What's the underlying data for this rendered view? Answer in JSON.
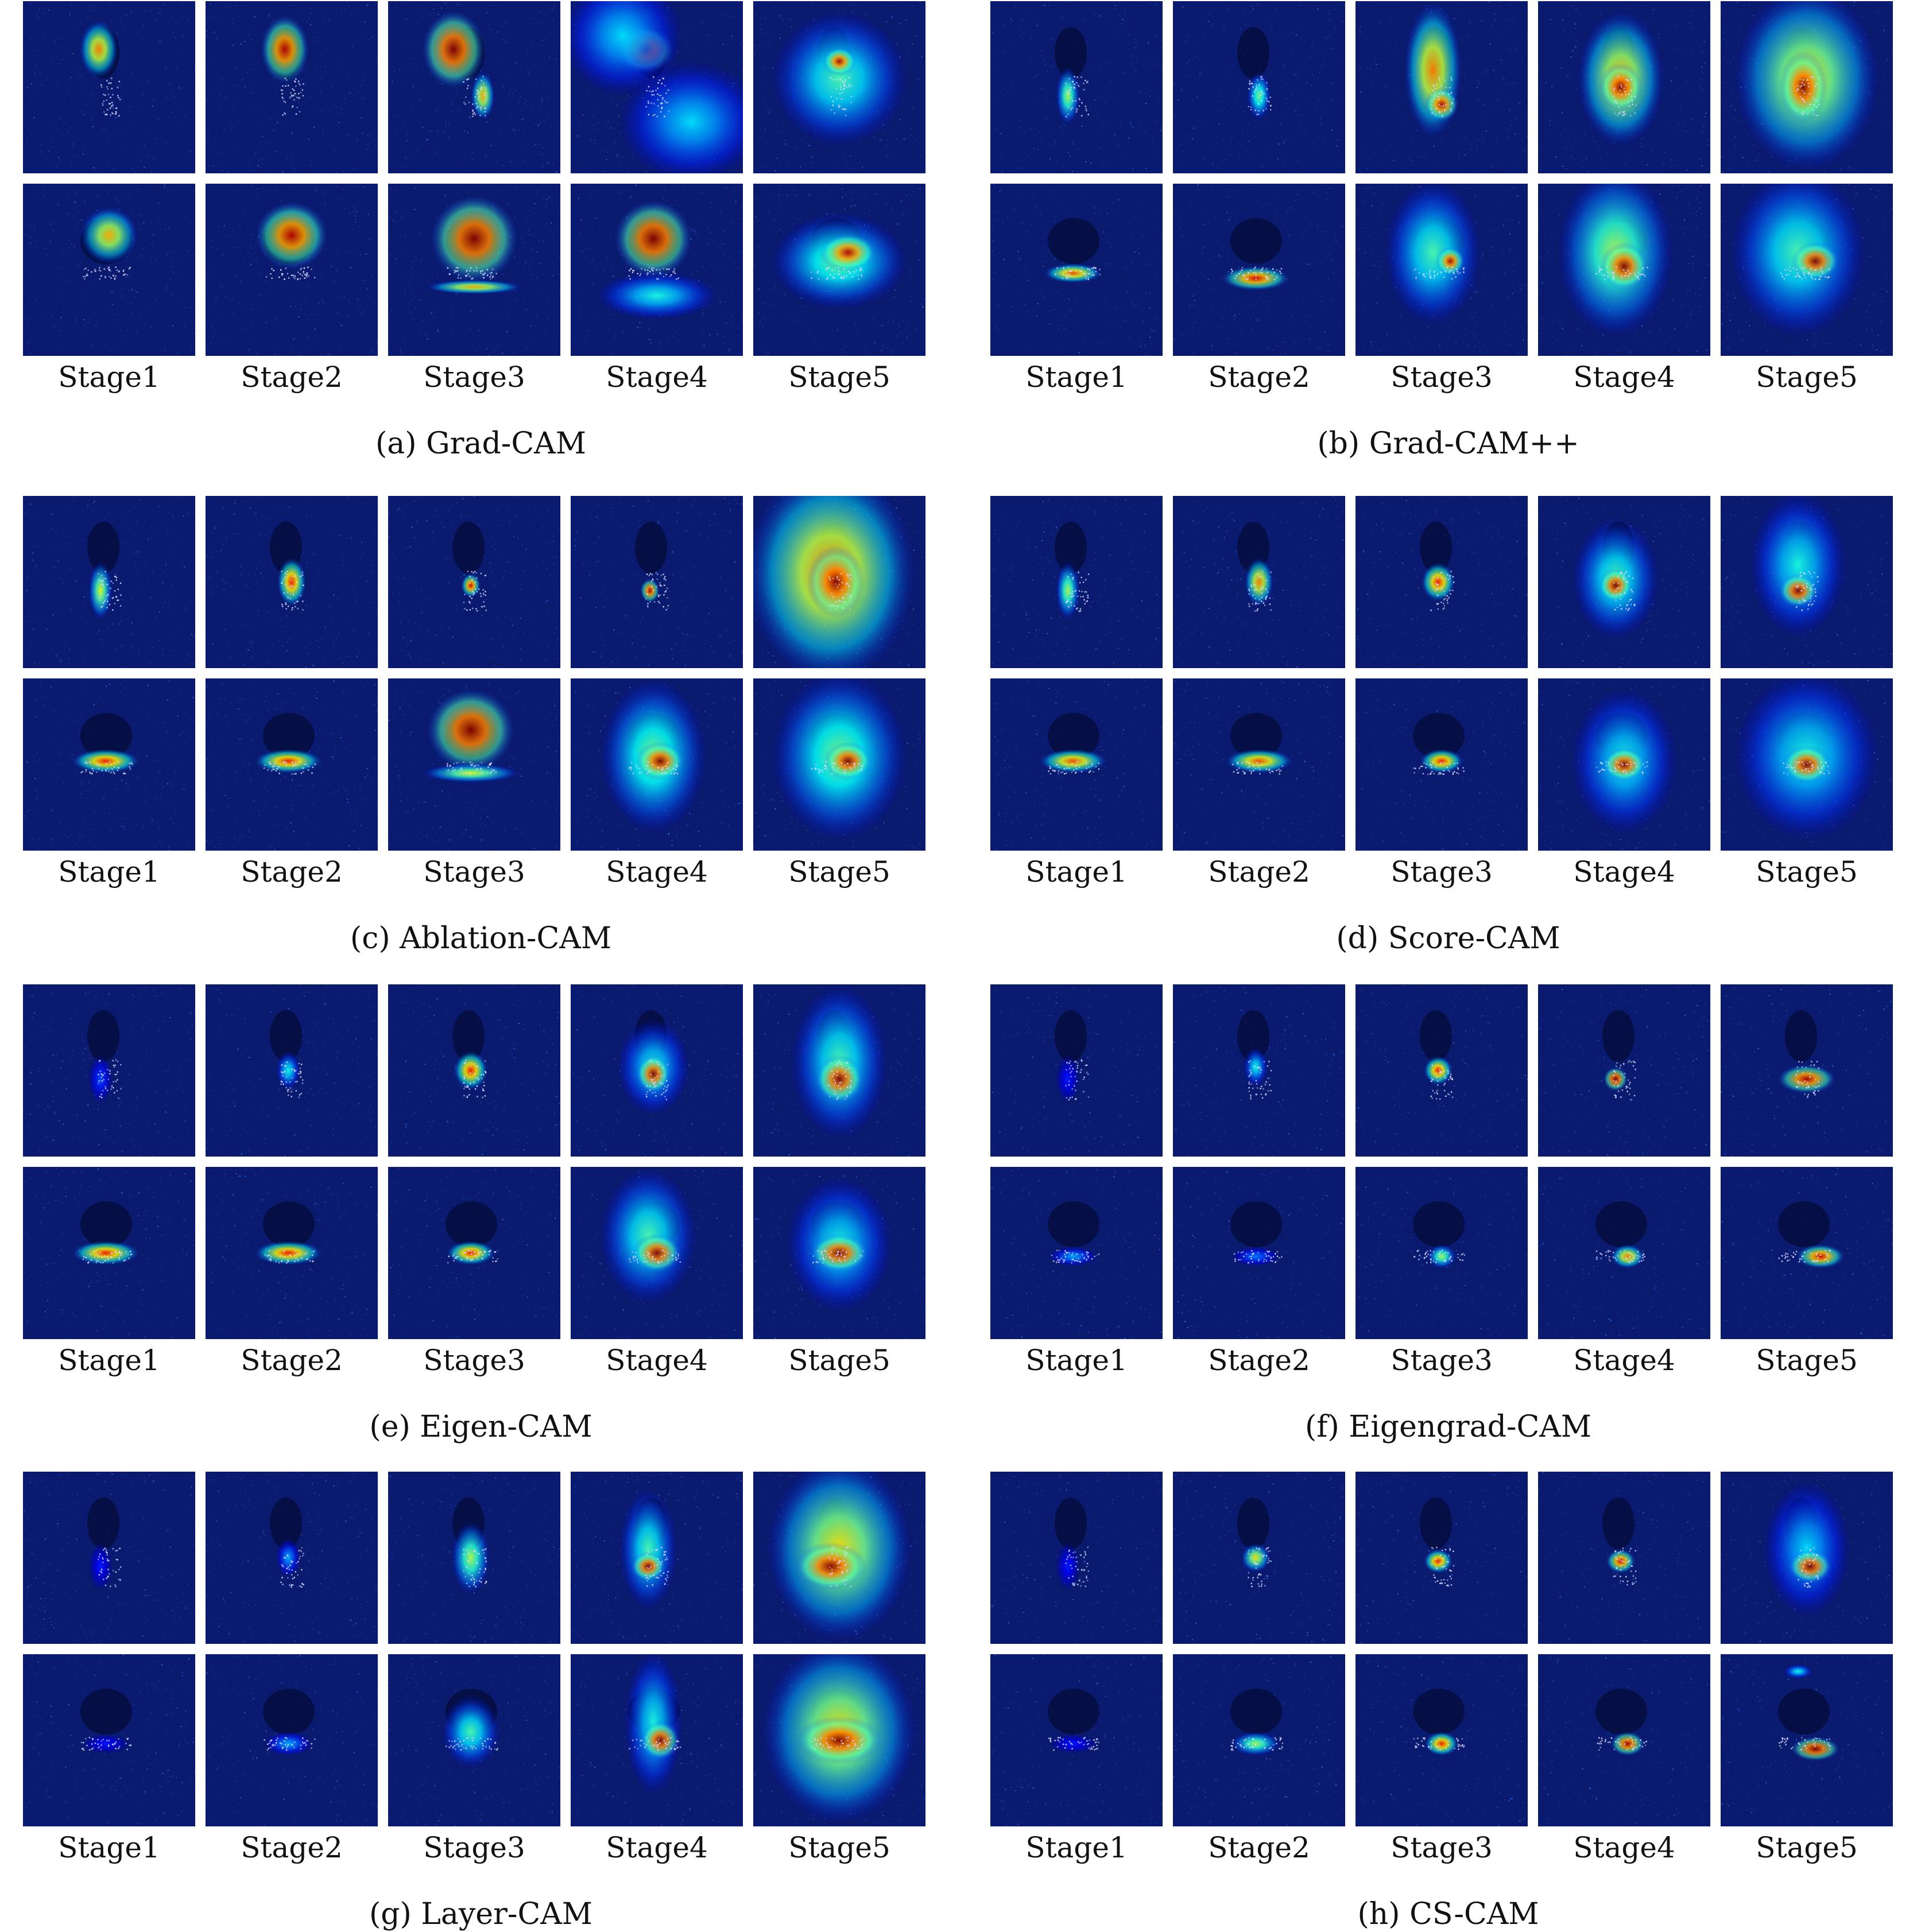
{
  "stage_labels": [
    "Stage1",
    "Stage2",
    "Stage3",
    "Stage4",
    "Stage5"
  ],
  "panels": [
    {
      "id": "a",
      "caption": "(a) Grad-CAM"
    },
    {
      "id": "b",
      "caption": "(b) Grad-CAM++"
    },
    {
      "id": "c",
      "caption": "(c) Ablation-CAM"
    },
    {
      "id": "d",
      "caption": "(d) Score-CAM"
    },
    {
      "id": "e",
      "caption": "(e) Eigen-CAM"
    },
    {
      "id": "f",
      "caption": "(f) Eigengrad-CAM"
    },
    {
      "id": "g",
      "caption": "(g) Layer-CAM"
    },
    {
      "id": "h",
      "caption": "(h) CS-CAM"
    }
  ],
  "colors": {
    "background_low": "#0a1a6e",
    "colormap": "jet",
    "target_speckle": "#d8d8ff"
  }
}
